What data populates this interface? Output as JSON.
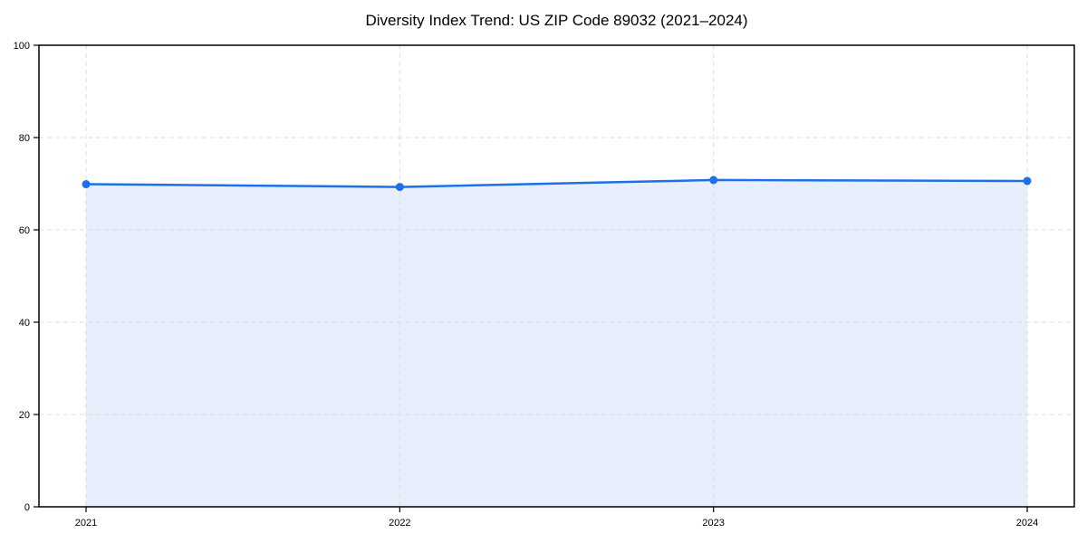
{
  "page": {
    "background": "#ffffff"
  },
  "chart_data": {
    "type": "area",
    "title": "Diversity Index Trend: US ZIP Code 89032 (2021–2024)",
    "categories": [
      "2021",
      "2022",
      "2023",
      "2024"
    ],
    "series": [
      {
        "name": "Diversity Index",
        "values": [
          69.9,
          69.3,
          70.8,
          70.6
        ]
      }
    ],
    "xlabel": "",
    "ylabel": "",
    "ylim": [
      0,
      100
    ],
    "yticks": [
      0,
      20,
      40,
      60,
      80,
      100
    ],
    "grid": true,
    "grid_style": "dashed",
    "legend": false,
    "colors": {
      "line": "#1f6feb",
      "marker": "#1f6feb",
      "fill": "#e7effc",
      "grid": "#dcdcdc",
      "axis": "#000000",
      "text": "#000000"
    }
  }
}
